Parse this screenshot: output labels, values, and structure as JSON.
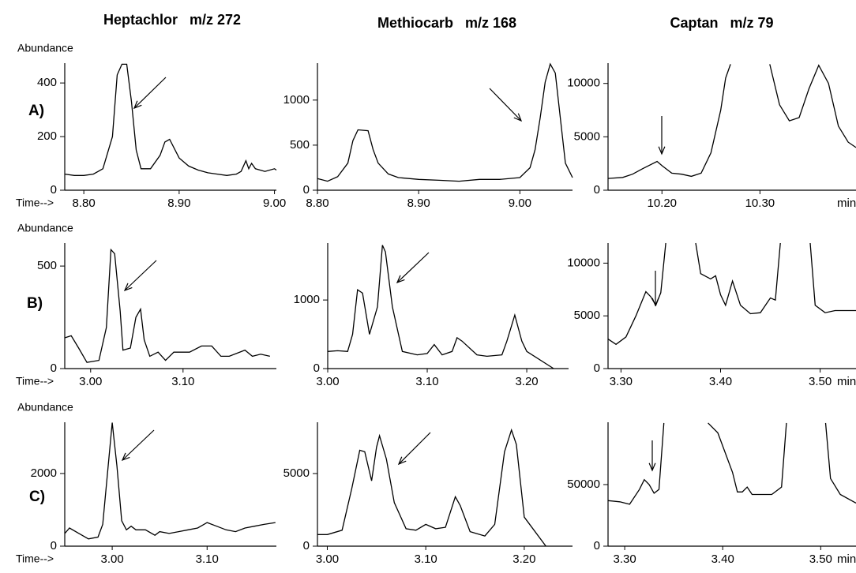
{
  "column_titles": [
    "Heptachlor   m/z 272",
    "Methiocarb   m/z 168",
    "Captan   m/z 79"
  ],
  "row_labels": [
    "A)",
    "B)",
    "C)"
  ],
  "chart_data": [
    {
      "type": "line",
      "ylabel": "Abundance",
      "xlabel": "Time-->",
      "color": "#000000",
      "x": [
        8.78,
        8.79,
        8.8,
        8.81,
        8.82,
        8.83,
        8.835,
        8.84,
        8.845,
        8.85,
        8.855,
        8.86,
        8.87,
        8.88,
        8.885,
        8.89,
        8.9,
        8.91,
        8.92,
        8.93,
        8.94,
        8.95,
        8.96,
        8.965,
        8.97,
        8.973,
        8.976,
        8.98,
        8.99,
        9.0,
        9.002
      ],
      "values": [
        60,
        55,
        55,
        60,
        80,
        200,
        430,
        470,
        470,
        330,
        150,
        80,
        80,
        130,
        180,
        190,
        120,
        90,
        75,
        65,
        60,
        55,
        60,
        70,
        110,
        80,
        100,
        80,
        70,
        80,
        75
      ],
      "xlim": [
        8.78,
        9.002
      ],
      "ylim": [
        0,
        474
      ],
      "xticks": [
        {
          "value": 8.8,
          "label": "8.80"
        },
        {
          "value": 8.9,
          "label": "8.90"
        },
        {
          "value": 9,
          "label": "9.00"
        }
      ],
      "yticks": [
        0,
        200,
        400
      ]
    },
    {
      "type": "line",
      "color": "#000000",
      "x": [
        8.8,
        8.81,
        8.82,
        8.83,
        8.835,
        8.84,
        8.85,
        8.855,
        8.86,
        8.87,
        8.88,
        8.9,
        8.92,
        8.94,
        8.96,
        8.98,
        9.0,
        9.01,
        9.015,
        9.02,
        9.025,
        9.03,
        9.035,
        9.04,
        9.045,
        9.052
      ],
      "values": [
        130,
        100,
        150,
        300,
        550,
        670,
        660,
        450,
        300,
        180,
        140,
        120,
        110,
        100,
        120,
        120,
        140,
        250,
        450,
        800,
        1200,
        1400,
        1300,
        800,
        300,
        140
      ],
      "xlim": [
        8.8,
        9.052
      ],
      "ylim": [
        0,
        1410
      ],
      "xticks": [
        {
          "value": 8.8,
          "label": "8.80"
        },
        {
          "value": 8.9,
          "label": "8.90"
        },
        {
          "value": 9,
          "label": "9.00"
        }
      ],
      "yticks": [
        0,
        500,
        1000
      ]
    },
    {
      "type": "line",
      "x_unit": "min",
      "color": "#000000",
      "x": [
        10.145,
        10.16,
        10.17,
        10.18,
        10.195,
        10.2,
        10.21,
        10.22,
        10.23,
        10.24,
        10.25,
        10.26,
        10.265,
        10.27,
        10.28,
        10.31,
        10.32,
        10.33,
        10.34,
        10.35,
        10.36,
        10.37,
        10.38,
        10.39,
        10.398
      ],
      "values": [
        1100,
        1200,
        1500,
        2000,
        2700,
        2300,
        1600,
        1500,
        1300,
        1600,
        3500,
        7500,
        10500,
        11800,
        null,
        11800,
        8000,
        6500,
        6800,
        9500,
        11700,
        10000,
        6000,
        4500,
        4000
      ],
      "xlim": [
        10.145,
        10.398
      ],
      "ylim": [
        0,
        11900
      ],
      "xticks": [
        {
          "value": 10.2,
          "label": "10.20"
        },
        {
          "value": 10.3,
          "label": "10.30"
        }
      ],
      "yticks": [
        0,
        5000,
        10000
      ]
    },
    {
      "type": "line",
      "ylabel": "Abundance",
      "xlabel": "Time-->",
      "color": "#000000",
      "x": [
        2.972,
        2.979,
        2.987,
        2.996,
        3.009,
        3.017,
        3.022,
        3.026,
        3.032,
        3.035,
        3.043,
        3.049,
        3.054,
        3.058,
        3.064,
        3.073,
        3.081,
        3.09,
        3.107,
        3.12,
        3.131,
        3.141,
        3.15,
        3.167,
        3.175,
        3.184,
        3.194
      ],
      "values": [
        150,
        160,
        100,
        30,
        40,
        200,
        580,
        560,
        280,
        90,
        100,
        250,
        290,
        140,
        60,
        80,
        40,
        80,
        80,
        110,
        110,
        60,
        60,
        90,
        60,
        70,
        60
      ],
      "xlim": [
        2.972,
        3.201
      ],
      "ylim": [
        0,
        612
      ],
      "xticks": [
        {
          "value": 3,
          "label": "3.00"
        },
        {
          "value": 3.1,
          "label": "3.10"
        }
      ],
      "yticks": [
        0,
        500
      ]
    },
    {
      "type": "line",
      "color": "#000000",
      "x": [
        3.0,
        3.01,
        3.02,
        3.025,
        3.03,
        3.035,
        3.042,
        3.05,
        3.055,
        3.058,
        3.065,
        3.075,
        3.09,
        3.1,
        3.107,
        3.115,
        3.125,
        3.13,
        3.135,
        3.15,
        3.16,
        3.175,
        3.18,
        3.188,
        3.195,
        3.2,
        3.227
      ],
      "values": [
        250,
        260,
        250,
        500,
        1150,
        1100,
        500,
        900,
        1800,
        1700,
        900,
        250,
        200,
        220,
        350,
        200,
        250,
        450,
        400,
        200,
        180,
        200,
        400,
        780,
        400,
        250,
        0
      ],
      "xlim": [
        3.0,
        3.242
      ],
      "ylim": [
        0,
        1830
      ],
      "xticks": [
        {
          "value": 3,
          "label": "3.00"
        },
        {
          "value": 3.1,
          "label": "3.10"
        },
        {
          "value": 3.2,
          "label": "3.20"
        }
      ],
      "yticks": [
        0,
        1000
      ]
    },
    {
      "type": "line",
      "x_unit": "min",
      "color": "#000000",
      "x": [
        3.287,
        3.295,
        3.305,
        3.315,
        3.325,
        3.33,
        3.335,
        3.34,
        3.345,
        3.36,
        3.375,
        3.38,
        3.39,
        3.395,
        3.4,
        3.405,
        3.412,
        3.42,
        3.43,
        3.44,
        3.45,
        3.455,
        3.46,
        3.475,
        3.49,
        3.495,
        3.505,
        3.515,
        3.536
      ],
      "values": [
        2800,
        2300,
        3000,
        5000,
        7300,
        6800,
        6000,
        7200,
        11900,
        null,
        11900,
        9000,
        8500,
        8800,
        7000,
        6000,
        8300,
        6000,
        5200,
        5300,
        6700,
        6500,
        11900,
        null,
        11900,
        6000,
        5300,
        5500,
        5500
      ],
      "xlim": [
        3.287,
        3.536
      ],
      "ylim": [
        0,
        11900
      ],
      "xticks": [
        {
          "value": 3.3,
          "label": "3.30"
        },
        {
          "value": 3.4,
          "label": "3.40"
        },
        {
          "value": 3.5,
          "label": "3.50"
        }
      ],
      "yticks": [
        0,
        5000,
        10000
      ]
    },
    {
      "type": "line",
      "ylabel": "Abundance",
      "xlabel": "Time-->",
      "color": "#000000",
      "x": [
        2.95,
        2.955,
        2.965,
        2.975,
        2.985,
        2.99,
        2.995,
        3.0,
        3.005,
        3.01,
        3.015,
        3.02,
        3.025,
        3.035,
        3.045,
        3.05,
        3.06,
        3.07,
        3.08,
        3.09,
        3.1,
        3.11,
        3.12,
        3.13,
        3.14,
        3.15,
        3.16,
        3.172
      ],
      "values": [
        350,
        500,
        350,
        200,
        250,
        600,
        2000,
        3400,
        2200,
        700,
        450,
        550,
        450,
        450,
        300,
        400,
        350,
        400,
        450,
        500,
        650,
        550,
        450,
        400,
        500,
        550,
        600,
        650
      ],
      "xlim": [
        2.95,
        3.173
      ],
      "ylim": [
        0,
        3410
      ],
      "xticks": [
        {
          "value": 3,
          "label": "3.00"
        },
        {
          "value": 3.1,
          "label": "3.10"
        }
      ],
      "yticks": [
        0,
        2000
      ]
    },
    {
      "type": "line",
      "color": "#000000",
      "x": [
        2.99,
        3.0,
        3.015,
        3.025,
        3.033,
        3.038,
        3.045,
        3.05,
        3.053,
        3.06,
        3.068,
        3.08,
        3.09,
        3.1,
        3.11,
        3.12,
        3.13,
        3.135,
        3.145,
        3.16,
        3.17,
        3.18,
        3.187,
        3.192,
        3.2,
        3.222
      ],
      "values": [
        800,
        800,
        1100,
        4000,
        6600,
        6500,
        4500,
        6800,
        7600,
        6000,
        3000,
        1200,
        1100,
        1500,
        1200,
        1300,
        3400,
        2800,
        1000,
        700,
        1500,
        6500,
        8000,
        7000,
        2000,
        0
      ],
      "xlim": [
        2.99,
        3.249
      ],
      "ylim": [
        0,
        8530
      ],
      "xticks": [
        {
          "value": 3,
          "label": "3.00"
        },
        {
          "value": 3.1,
          "label": "3.10"
        },
        {
          "value": 3.2,
          "label": "3.20"
        }
      ],
      "yticks": [
        0,
        5000
      ]
    },
    {
      "type": "line",
      "x_unit": "min",
      "color": "#000000",
      "x": [
        3.283,
        3.295,
        3.305,
        3.315,
        3.32,
        3.325,
        3.33,
        3.335,
        3.34,
        3.36,
        3.385,
        3.395,
        3.41,
        3.415,
        3.42,
        3.425,
        3.43,
        3.45,
        3.46,
        3.465,
        3.485,
        3.505,
        3.51,
        3.52,
        3.536
      ],
      "values": [
        37000,
        36000,
        34000,
        46000,
        54000,
        50000,
        43000,
        46000,
        100000,
        null,
        100000,
        92000,
        60000,
        44000,
        44000,
        48000,
        42000,
        42000,
        48000,
        100000,
        null,
        100000,
        55000,
        42000,
        35000
      ],
      "xlim": [
        3.283,
        3.536
      ],
      "ylim": [
        0,
        100600
      ],
      "xticks": [
        {
          "value": 3.3,
          "label": "3.30"
        },
        {
          "value": 3.4,
          "label": "3.40"
        },
        {
          "value": 3.5,
          "label": "3.50"
        }
      ],
      "yticks": [
        0,
        50000
      ]
    }
  ]
}
